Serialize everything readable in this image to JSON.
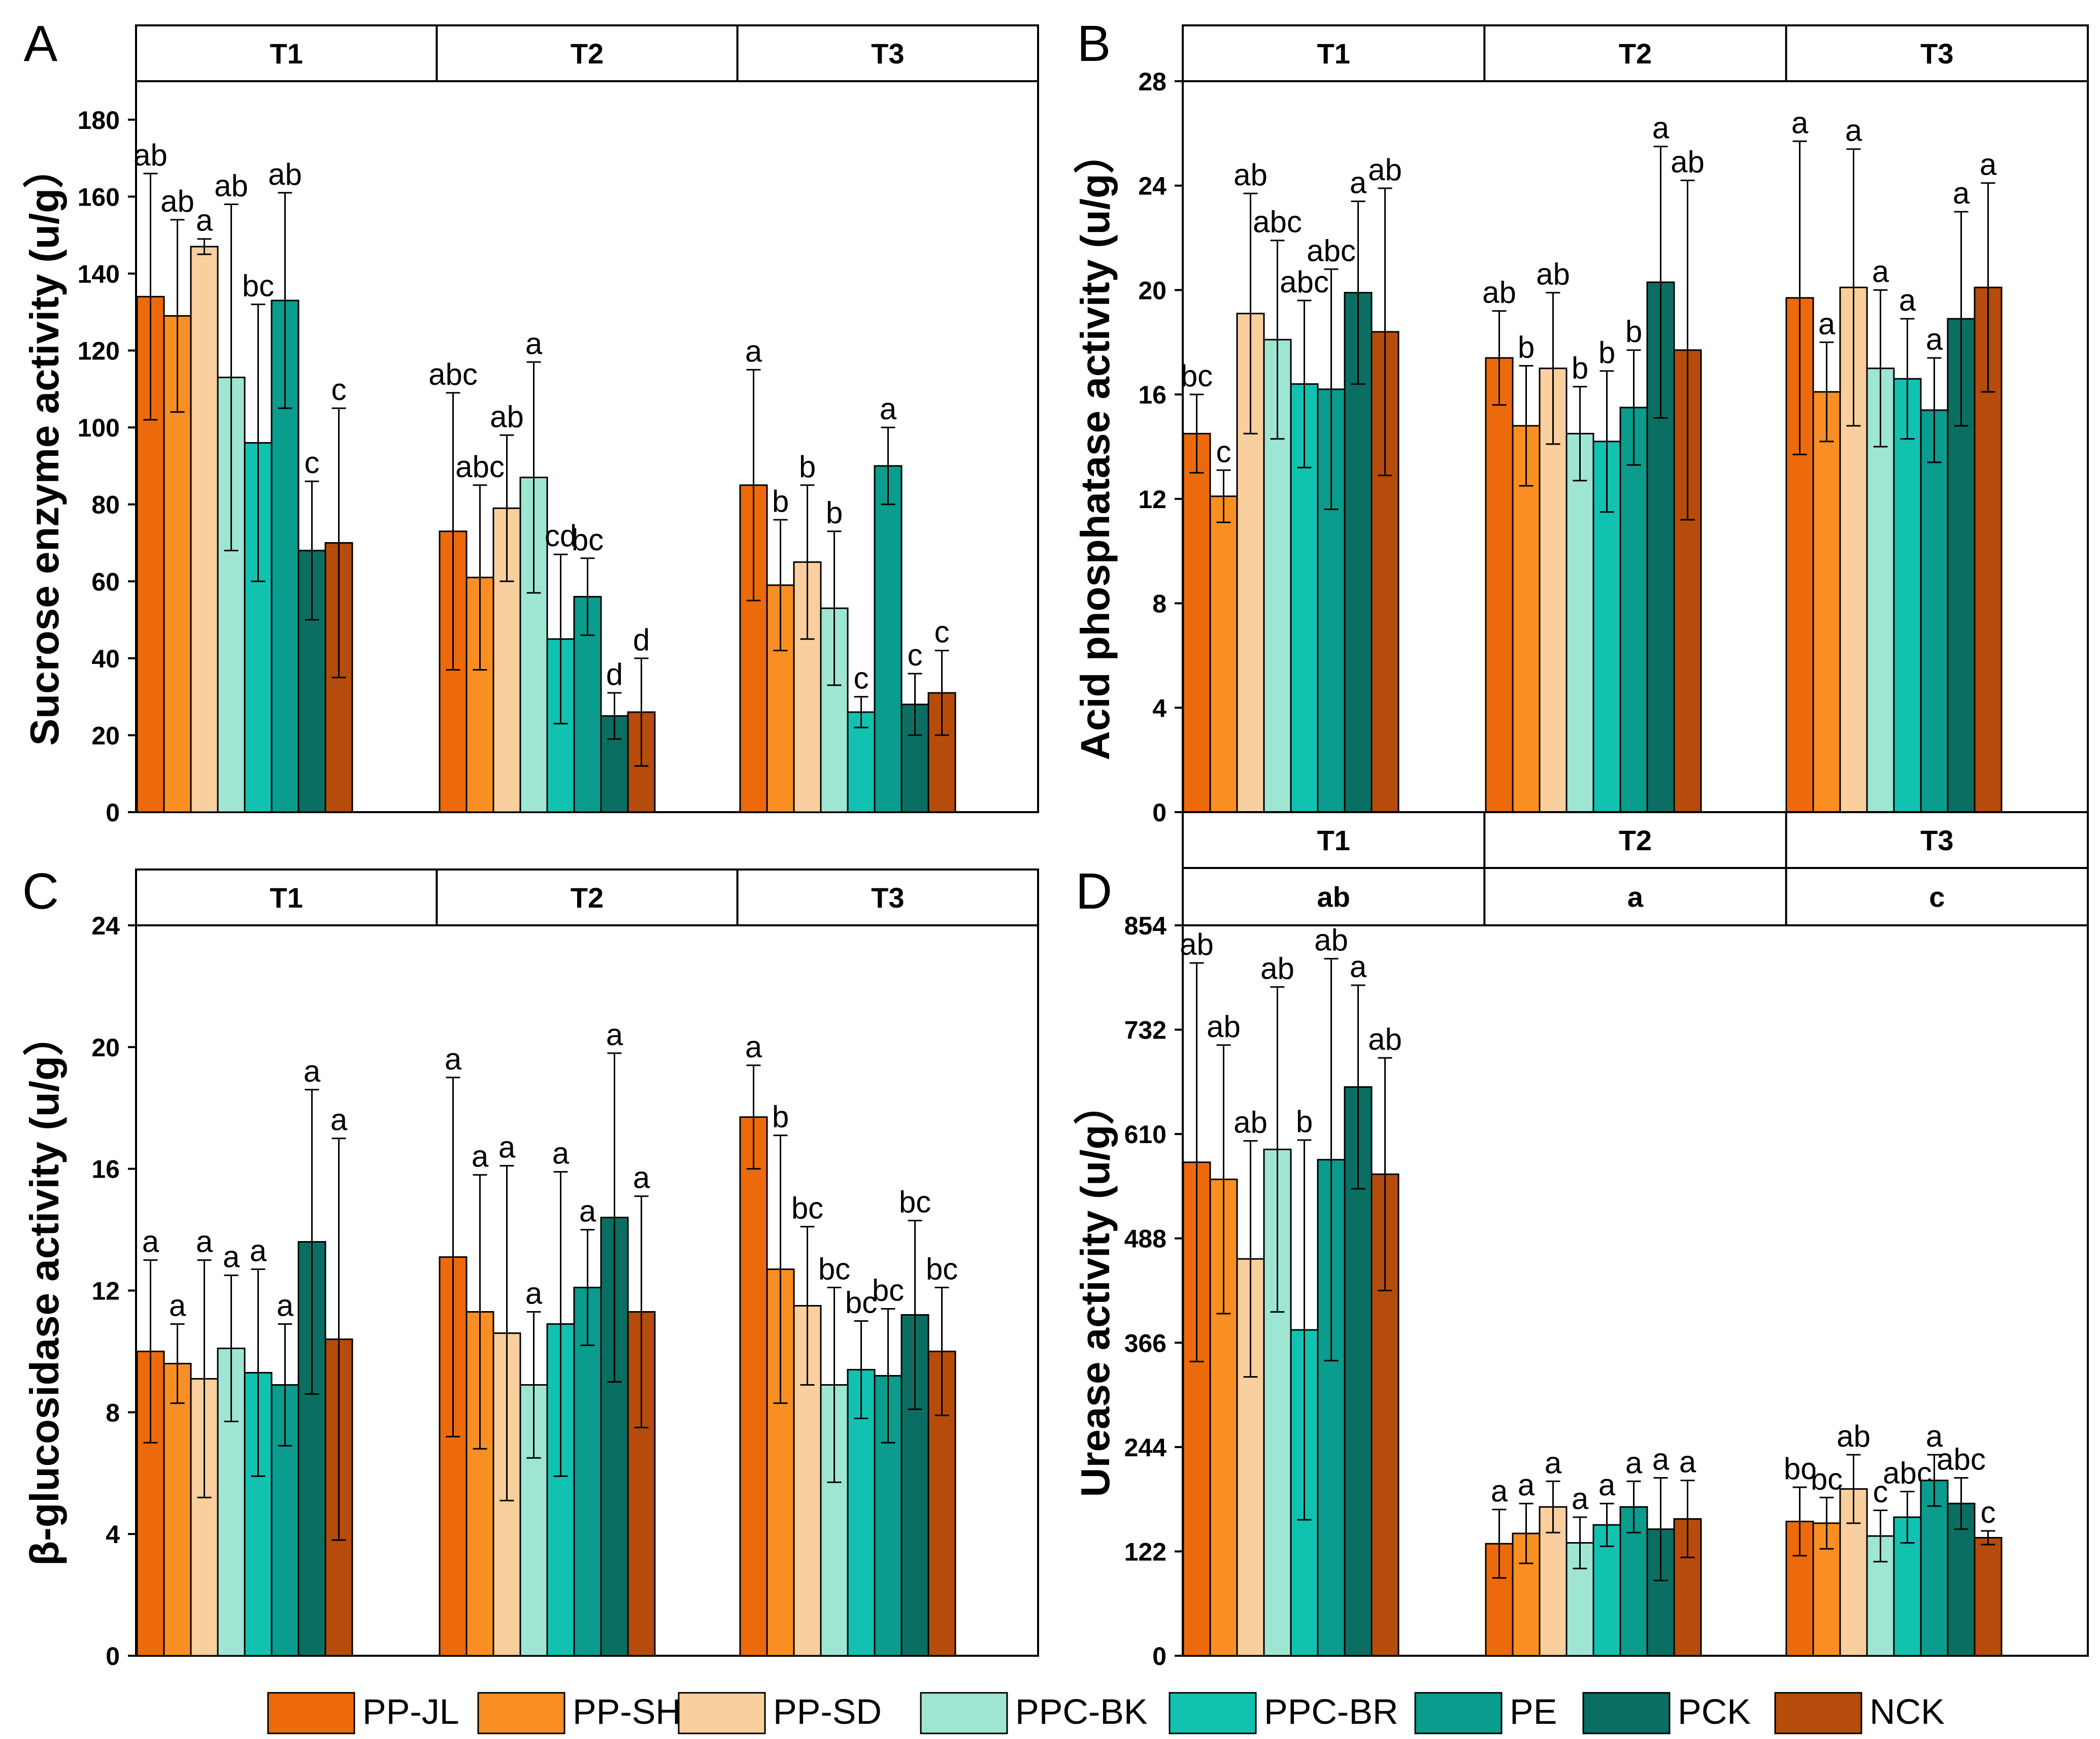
{
  "colors": {
    "PP-JL": "#ed6a0c",
    "PP-SH": "#f98f23",
    "PP-SD": "#f9cf9d",
    "PPC-BK": "#9ee6d3",
    "PPC-BR": "#12c2b1",
    "PE": "#0a9c8c",
    "PCK": "#0a6f62",
    "NCK": "#b54c0b"
  },
  "legend": [
    "PP-JL",
    "PP-SH",
    "PP-SD",
    "PPC-BK",
    "PPC-BR",
    "PE",
    "PCK",
    "NCK"
  ],
  "chart_data": [
    {
      "panel_label": "A",
      "type": "bar",
      "ylabel": "Sucrose enzyme activity (u/g）",
      "ylim": [
        0,
        190
      ],
      "yticks": [
        "0",
        "20",
        "40",
        "60",
        "80",
        "100",
        "120",
        "140",
        "160",
        "180"
      ],
      "groups": [
        "T1",
        "T2",
        "T3"
      ],
      "group_letters": [],
      "series_names": [
        "PP-JL",
        "PP-SH",
        "PP-SD",
        "PPC-BK",
        "PPC-BR",
        "PE",
        "PCK",
        "NCK"
      ],
      "values": [
        [
          134,
          129,
          147,
          113,
          96,
          133,
          68,
          70
        ],
        [
          73,
          61,
          79,
          87,
          45,
          56,
          25,
          26
        ],
        [
          85,
          59,
          65,
          53,
          26,
          90,
          28,
          31
        ]
      ],
      "errors": [
        [
          32,
          25,
          2,
          45,
          36,
          28,
          18,
          35
        ],
        [
          36,
          24,
          19,
          30,
          22,
          10,
          6,
          14
        ],
        [
          30,
          17,
          20,
          20,
          4,
          10,
          8,
          11
        ]
      ],
      "letters": [
        [
          "ab",
          "ab",
          "a",
          "ab",
          "bc",
          "ab",
          "c",
          "c"
        ],
        [
          "abc",
          "abc",
          "ab",
          "a",
          "cd",
          "bc",
          "d",
          "d"
        ],
        [
          "a",
          "b",
          "b",
          "b",
          "c",
          "a",
          "c",
          "c"
        ]
      ]
    },
    {
      "panel_label": "B",
      "type": "bar",
      "ylabel": "Acid phosphatase activity (u/g）",
      "ylim": [
        0,
        28
      ],
      "yticks": [
        "0",
        "4",
        "8",
        "12",
        "16",
        "20",
        "24",
        "28"
      ],
      "groups": [
        "T1",
        "T2",
        "T3"
      ],
      "group_letters": [],
      "series_names": [
        "PP-JL",
        "PP-SH",
        "PP-SD",
        "PPC-BK",
        "PPC-BR",
        "PE",
        "PCK",
        "NCK"
      ],
      "values": [
        [
          14.5,
          12.1,
          19.1,
          18.1,
          16.4,
          16.2,
          19.9,
          18.4
        ],
        [
          17.4,
          14.8,
          17.0,
          14.5,
          14.2,
          15.5,
          20.3,
          17.7
        ],
        [
          19.7,
          16.1,
          20.1,
          17.0,
          16.6,
          15.4,
          18.9,
          20.1
        ]
      ],
      "errors": [
        [
          1.5,
          1.0,
          4.6,
          3.8,
          3.2,
          4.6,
          3.5,
          5.5
        ],
        [
          1.8,
          2.3,
          2.9,
          1.8,
          2.7,
          2.2,
          5.2,
          6.5
        ],
        [
          6.0,
          1.9,
          5.3,
          3.0,
          2.3,
          2.0,
          4.1,
          4.0
        ]
      ],
      "letters": [
        [
          "bc",
          "c",
          "ab",
          "abc",
          "abc",
          "abc",
          "a",
          "ab"
        ],
        [
          "ab",
          "b",
          "ab",
          "b",
          "b",
          "b",
          "a",
          "ab"
        ],
        [
          "a",
          "a",
          "a",
          "a",
          "a",
          "a",
          "a",
          "a"
        ]
      ]
    },
    {
      "panel_label": "C",
      "type": "bar",
      "ylabel": "β-glucosidase activity (u/g）",
      "ylim": [
        0,
        24
      ],
      "yticks": [
        "0",
        "4",
        "8",
        "12",
        "16",
        "20",
        "24"
      ],
      "groups": [
        "T1",
        "T2",
        "T3"
      ],
      "group_letters": [],
      "series_names": [
        "PP-JL",
        "PP-SH",
        "PP-SD",
        "PPC-BK",
        "PPC-BR",
        "PE",
        "PCK",
        "NCK"
      ],
      "values": [
        [
          10.0,
          9.6,
          9.1,
          10.1,
          9.3,
          8.9,
          13.6,
          10.4
        ],
        [
          13.1,
          11.3,
          10.6,
          8.9,
          10.9,
          12.1,
          14.4,
          11.3
        ],
        [
          17.7,
          12.7,
          11.5,
          8.9,
          9.4,
          9.2,
          11.2,
          10.0
        ]
      ],
      "errors": [
        [
          3.0,
          1.3,
          3.9,
          2.4,
          3.4,
          2.0,
          5.0,
          6.6
        ],
        [
          5.9,
          4.5,
          5.5,
          2.4,
          5.0,
          1.9,
          5.4,
          3.8
        ],
        [
          1.7,
          4.4,
          2.6,
          3.2,
          1.6,
          2.2,
          3.1,
          2.1
        ]
      ],
      "letters": [
        [
          "a",
          "a",
          "a",
          "a",
          "a",
          "a",
          "a",
          "a"
        ],
        [
          "a",
          "a",
          "a",
          "a",
          "a",
          "a",
          "a",
          "a"
        ],
        [
          "a",
          "b",
          "bc",
          "bc",
          "bc",
          "bc",
          "bc",
          "bc"
        ]
      ]
    },
    {
      "panel_label": "D",
      "type": "bar",
      "ylabel": "Urease activity (u/g）",
      "ylim": [
        0,
        854
      ],
      "yticks": [
        "0",
        "122",
        "244",
        "366",
        "488",
        "610",
        "732",
        "854"
      ],
      "groups": [
        "T1",
        "T2",
        "T3"
      ],
      "group_letters": [
        "ab",
        "a",
        "c"
      ],
      "series_names": [
        "PP-JL",
        "PP-SH",
        "PP-SD",
        "PPC-BK",
        "PPC-BR",
        "PE",
        "PCK",
        "NCK"
      ],
      "values": [
        [
          577,
          557,
          464,
          592,
          381,
          580,
          665,
          563
        ],
        [
          131,
          143,
          174,
          132,
          153,
          174,
          148,
          160
        ],
        [
          157,
          155,
          195,
          140,
          162,
          205,
          178,
          138
        ]
      ],
      "errors": [
        [
          233,
          157,
          138,
          190,
          222,
          235,
          119,
          136
        ],
        [
          40,
          35,
          30,
          30,
          25,
          30,
          60,
          45
        ],
        [
          40,
          30,
          40,
          30,
          30,
          30,
          30,
          8
        ]
      ],
      "letters": [
        [
          "ab",
          "ab",
          "ab",
          "ab",
          "b",
          "ab",
          "a",
          "ab"
        ],
        [
          "a",
          "a",
          "a",
          "a",
          "a",
          "a",
          "a",
          "a"
        ],
        [
          "bc",
          "bc",
          "ab",
          "c",
          "abc",
          "a",
          "abc",
          "c"
        ]
      ]
    }
  ]
}
